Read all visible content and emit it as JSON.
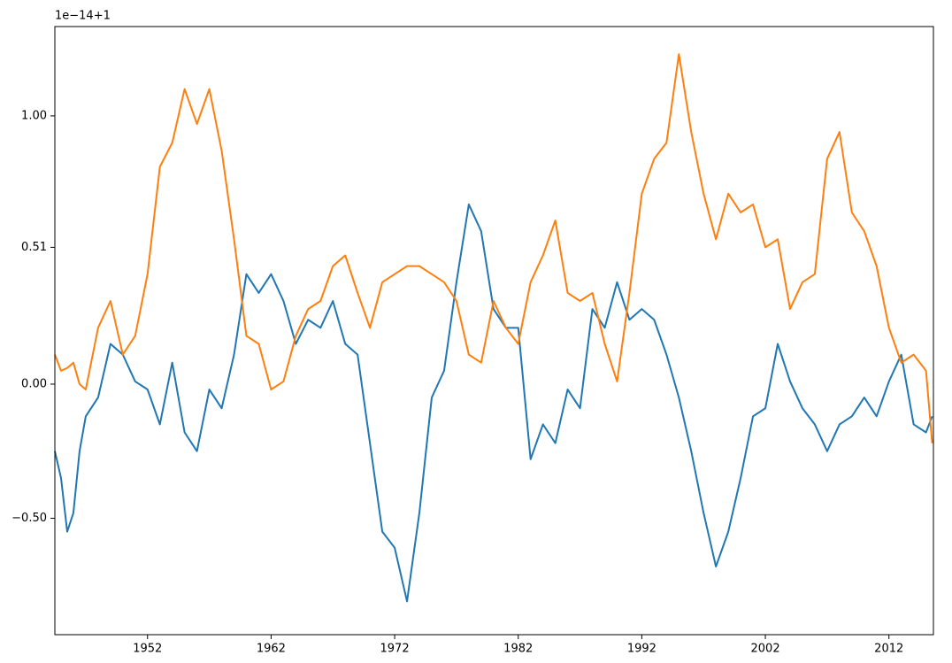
{
  "chart_data": {
    "type": "line",
    "offset_text": "1e−14+1",
    "x": [
      1944.5,
      1945,
      1945.5,
      1946,
      1946.5,
      1947,
      1948,
      1949,
      1950,
      1951,
      1952,
      1953,
      1954,
      1955,
      1956,
      1957,
      1958,
      1959,
      1960,
      1961,
      1962,
      1963,
      1964,
      1965,
      1966,
      1967,
      1968,
      1969,
      1970,
      1971,
      1972,
      1973,
      1974,
      1975,
      1976,
      1977,
      1978,
      1979,
      1980,
      1981,
      1982,
      1983,
      1984,
      1985,
      1986,
      1987,
      1988,
      1989,
      1990,
      1991,
      1992,
      1993,
      1994,
      1995,
      1996,
      1997,
      1998,
      1999,
      2000,
      2001,
      2002,
      2003,
      2004,
      2005,
      2006,
      2007,
      2008,
      2009,
      2010,
      2011,
      2012,
      2013,
      2014,
      2015,
      2015.5
    ],
    "series": [
      {
        "color": "#1f77b4",
        "values": [
          -0.25,
          -0.35,
          -0.55,
          -0.48,
          -0.25,
          -0.12,
          -0.05,
          0.15,
          0.11,
          0.01,
          -0.02,
          -0.15,
          0.08,
          -0.18,
          -0.25,
          -0.02,
          -0.09,
          0.11,
          0.41,
          0.34,
          0.41,
          0.31,
          0.15,
          0.24,
          0.21,
          0.31,
          0.15,
          0.11,
          -0.22,
          -0.55,
          -0.61,
          -0.81,
          -0.48,
          -0.05,
          0.05,
          0.38,
          0.67,
          0.57,
          0.28,
          0.21,
          0.21,
          -0.28,
          -0.15,
          -0.22,
          -0.02,
          -0.09,
          0.28,
          0.21,
          0.38,
          0.24,
          0.28,
          0.24,
          0.11,
          -0.05,
          -0.25,
          -0.48,
          -0.68,
          -0.55,
          -0.35,
          -0.12,
          -0.09,
          0.15,
          0.01,
          -0.09,
          -0.15,
          -0.25,
          -0.15,
          -0.12,
          -0.05,
          -0.12,
          0.01,
          0.11,
          -0.15,
          -0.18,
          -0.12
        ]
      },
      {
        "color": "#ff7f0e",
        "values": [
          0.11,
          0.05,
          0.06,
          0.08,
          0.0,
          -0.02,
          0.21,
          0.31,
          0.11,
          0.18,
          0.41,
          0.81,
          0.9,
          1.1,
          0.97,
          1.1,
          0.87,
          0.54,
          0.18,
          0.15,
          -0.02,
          0.01,
          0.18,
          0.28,
          0.31,
          0.44,
          0.48,
          0.34,
          0.21,
          0.38,
          0.41,
          0.44,
          0.44,
          0.41,
          0.38,
          0.31,
          0.11,
          0.08,
          0.31,
          0.21,
          0.15,
          0.38,
          0.48,
          0.61,
          0.34,
          0.31,
          0.34,
          0.15,
          0.01,
          0.34,
          0.71,
          0.84,
          0.9,
          1.23,
          0.94,
          0.71,
          0.54,
          0.71,
          0.64,
          0.67,
          0.51,
          0.54,
          0.28,
          0.38,
          0.41,
          0.84,
          0.94,
          0.64,
          0.57,
          0.44,
          0.21,
          0.08,
          0.11,
          0.05,
          -0.22
        ]
      }
    ],
    "xlim": [
      1944.5,
      2015.6
    ],
    "xticks": [
      1952,
      1962,
      1972,
      1982,
      1992,
      2002,
      2012
    ],
    "ylim": [
      -0.934,
      1.333
    ],
    "yticks": [
      {
        "value": -0.5,
        "label": "−0.50"
      },
      {
        "value": 0,
        "label": "0.00"
      },
      {
        "value": 0.51,
        "label": "0.51"
      },
      {
        "value": 1,
        "label": "1.00"
      }
    ],
    "grid": false
  }
}
